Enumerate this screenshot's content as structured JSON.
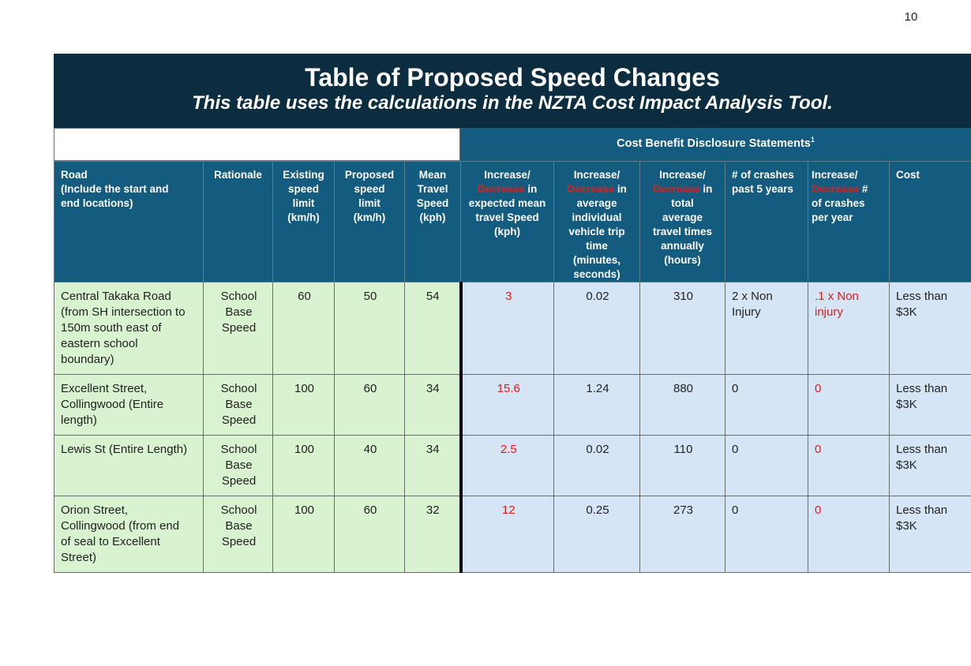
{
  "page_number": "10",
  "title": "Table of Proposed Speed Changes",
  "subtitle": "This table uses the calculations in the NZTA Cost Impact Analysis Tool.",
  "cbds": {
    "label": "Cost Benefit Disclosure Statements",
    "footnote": "1"
  },
  "headers": {
    "road": [
      "Road",
      "(Include the start and",
      "end locations)"
    ],
    "rationale": "Rationale",
    "existing": [
      "Existing",
      "speed",
      "limit",
      "(km/h)"
    ],
    "proposed": [
      "Proposed",
      "speed",
      "limit",
      "(km/h)"
    ],
    "mean": [
      "Mean",
      "Travel",
      "Speed",
      "(kph)"
    ],
    "inc_speed": {
      "a": "Increase/",
      "red": "Decrease",
      "b": " in",
      "rest": [
        "expected mean",
        "travel Speed",
        "(kph)"
      ]
    },
    "inc_trip": {
      "a": "Increase/",
      "red": "Decrease",
      "b": " in",
      "rest": [
        "average",
        "individual",
        "vehicle trip",
        "time",
        "(minutes,",
        "seconds)"
      ]
    },
    "inc_total": {
      "a": "Increase/",
      "red": "Decrease",
      "b": " in",
      "rest": [
        "total",
        "average",
        "travel times",
        "annually",
        "(hours)"
      ]
    },
    "crashes": [
      "# of crashes",
      "past 5 years"
    ],
    "inc_crashes": {
      "a": "Increase/",
      "red": "Decrease",
      "b": " #",
      "rest": [
        "of crashes",
        "per year"
      ]
    },
    "cost": "Cost"
  },
  "rows": [
    {
      "road": [
        "Central Takaka Road",
        "(from SH intersection to",
        "150m south east of",
        "eastern school",
        "boundary)"
      ],
      "rationale": [
        "School",
        "Base",
        "Speed"
      ],
      "existing": "60",
      "proposed": "50",
      "mean": "54",
      "inc_speed": "3",
      "inc_trip": "0.02",
      "inc_total": "310",
      "crashes": [
        "2 x Non",
        "Injury"
      ],
      "inc_crashes": [
        ".1 x Non",
        "injury"
      ],
      "cost": [
        "Less than",
        "$3K"
      ]
    },
    {
      "road": [
        "Excellent Street,",
        "Collingwood (Entire",
        "length)"
      ],
      "rationale": [
        "School",
        "Base",
        "Speed"
      ],
      "existing": "100",
      "proposed": "60",
      "mean": "34",
      "inc_speed": "15.6",
      "inc_trip": "1.24",
      "inc_total": "880",
      "crashes": [
        "0"
      ],
      "inc_crashes": [
        "0"
      ],
      "cost": [
        "Less than",
        "$3K"
      ]
    },
    {
      "road": [
        "Lewis St (Entire Length)"
      ],
      "rationale": [
        "School",
        "Base",
        "Speed"
      ],
      "existing": "100",
      "proposed": "40",
      "mean": "34",
      "inc_speed": "2.5",
      "inc_trip": "0.02",
      "inc_total": "110",
      "crashes": [
        "0"
      ],
      "inc_crashes": [
        "0"
      ],
      "cost": [
        "Less than",
        "$3K"
      ]
    },
    {
      "road": [
        "Orion Street,",
        "Collingwood (from end",
        "of seal to Excellent",
        "Street)"
      ],
      "rationale": [
        "School",
        "Base",
        "Speed"
      ],
      "existing": "100",
      "proposed": "60",
      "mean": "32",
      "inc_speed": "12",
      "inc_trip": "0.25",
      "inc_total": "273",
      "crashes": [
        "0"
      ],
      "inc_crashes": [
        "0"
      ],
      "cost": [
        "Less than",
        "$3K"
      ]
    }
  ]
}
